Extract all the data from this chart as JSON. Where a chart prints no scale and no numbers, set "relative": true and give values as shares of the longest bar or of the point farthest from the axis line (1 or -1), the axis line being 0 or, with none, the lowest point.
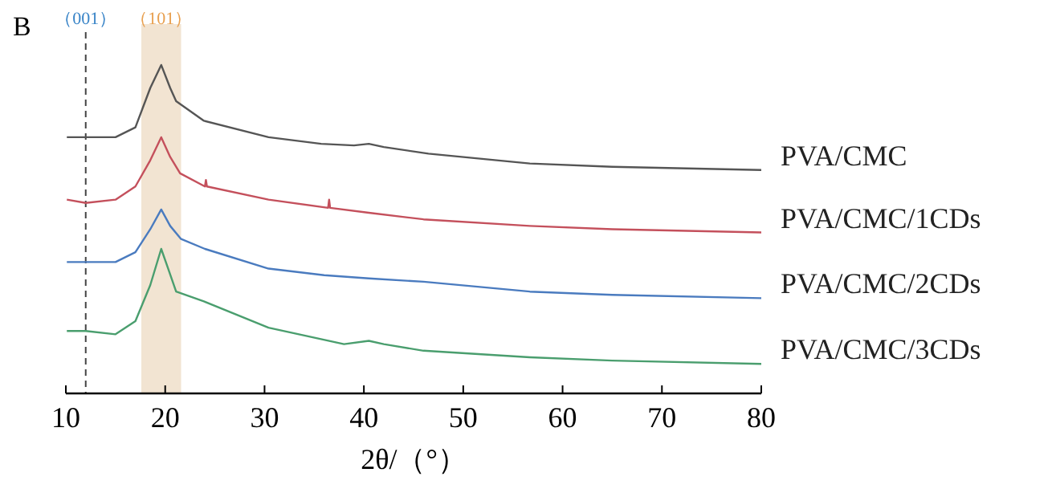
{
  "chart_data": {
    "type": "line",
    "title": "B",
    "xlabel": "2θ/（°）",
    "relative": true,
    "tick_labels": "x",
    "xlim": [
      10,
      80
    ],
    "xticks": [
      10,
      20,
      30,
      40,
      50,
      60,
      70,
      80
    ],
    "ref_lines": [
      {
        "axis": "x",
        "value": 12,
        "label": "（001）",
        "color": "#444444",
        "line_style": "dashed"
      }
    ],
    "bands": [
      {
        "axis": "x",
        "from": 17.6,
        "to": 21.6,
        "label": "（101）",
        "color": "#f2e4d2"
      }
    ],
    "series": [
      {
        "name": "PVA/CMC",
        "color": "#555555",
        "x": [
          10.1,
          12,
          15,
          17,
          18.5,
          19.6,
          20.5,
          21.1,
          23.9,
          30.4,
          35.7,
          39,
          40.5,
          42,
          46.5,
          56.7,
          65,
          80
        ],
        "values": [
          0.78,
          0.78,
          0.78,
          0.81,
          0.93,
          1.0,
          0.93,
          0.89,
          0.83,
          0.78,
          0.76,
          0.755,
          0.76,
          0.75,
          0.73,
          0.7,
          0.69,
          0.68
        ]
      },
      {
        "name": "PVA/CMC/1CDs",
        "color": "#c4505c",
        "x": [
          10.1,
          12,
          15,
          17,
          18.5,
          19.6,
          20.5,
          21.5,
          24.0,
          24.1,
          24.2,
          30.4,
          36.4,
          36.5,
          36.6,
          40.5,
          46,
          56.7,
          65,
          80
        ],
        "values": [
          0.59,
          0.58,
          0.59,
          0.63,
          0.71,
          0.78,
          0.72,
          0.67,
          0.63,
          0.65,
          0.63,
          0.59,
          0.565,
          0.59,
          0.565,
          0.55,
          0.53,
          0.51,
          0.5,
          0.49
        ]
      },
      {
        "name": "PVA/CMC/2CDs",
        "color": "#4a7bbf",
        "x": [
          10.1,
          12,
          15,
          17,
          18.5,
          19.6,
          20.5,
          21.6,
          24,
          30.4,
          36,
          40.5,
          46,
          56.7,
          65,
          80
        ],
        "values": [
          0.4,
          0.4,
          0.4,
          0.43,
          0.5,
          0.56,
          0.51,
          0.47,
          0.44,
          0.38,
          0.36,
          0.35,
          0.34,
          0.31,
          0.3,
          0.29
        ]
      },
      {
        "name": "PVA/CMC/3CDs",
        "color": "#4a9e6e",
        "x": [
          10.1,
          12,
          15,
          17,
          18.5,
          19.6,
          20.3,
          21.1,
          23.9,
          30.4,
          38,
          40.5,
          42,
          46,
          56.7,
          65,
          80
        ],
        "values": [
          0.19,
          0.19,
          0.18,
          0.22,
          0.33,
          0.44,
          0.38,
          0.31,
          0.28,
          0.2,
          0.15,
          0.16,
          0.15,
          0.13,
          0.11,
          0.1,
          0.09
        ]
      }
    ]
  }
}
